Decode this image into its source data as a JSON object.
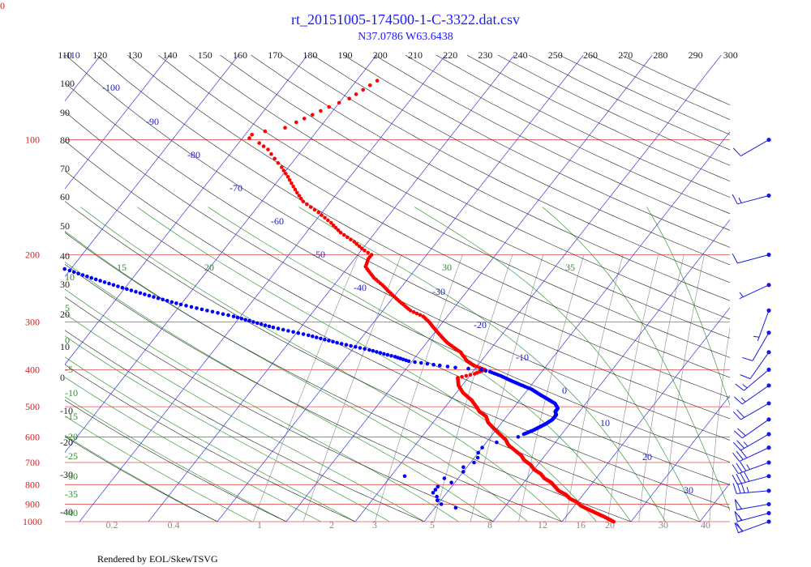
{
  "corner_label": "0",
  "footer": "Rendered by EOL/SkewTSVG",
  "chart_data": {
    "type": "scatter",
    "title": "rt_20151005-174500-1-C-3322.dat.csv",
    "subtitle": "N37.0786 W63.6438",
    "colors": {
      "isobar": "#e05050",
      "isotherm": "#3a3ad8",
      "dry_adiabat": "#222222",
      "moist_adiabat": "#3a9a3a",
      "mixing_ratio": "#9a9a9a",
      "temperature": "#ff0000",
      "dewpoint": "#0000ff",
      "wind": "#1a1ae0"
    },
    "temperature_axis": {
      "ticks": [
        110,
        120,
        130,
        140,
        150,
        160,
        170,
        180,
        190,
        200,
        210,
        220,
        230,
        240,
        250,
        260,
        270,
        280,
        290,
        300
      ]
    },
    "pressure_axis": {
      "ticks": [
        100,
        200,
        300,
        400,
        500,
        600,
        700,
        800,
        900,
        1000
      ],
      "range": [
        60,
        1000
      ]
    },
    "isotherm_labels": [
      -110,
      -100,
      -90,
      -80,
      -70,
      -60,
      -50,
      -40,
      -30,
      -20,
      -10,
      0,
      10,
      20,
      30
    ],
    "dry_adiabat_labels": [
      100,
      90,
      80,
      70,
      60,
      50,
      40,
      30,
      20,
      10,
      0,
      -10,
      -20,
      -30,
      -40
    ],
    "moist_adiabat_labels": [
      15,
      20,
      30,
      35,
      10,
      5,
      0,
      -5,
      -10,
      -15,
      -20,
      -25,
      -30,
      -35,
      -40
    ],
    "mixing_ratio_labels": [
      "0.2",
      "0.4",
      "1",
      "2",
      "3",
      "5",
      "8",
      "12",
      "16",
      "20",
      "30",
      "40"
    ],
    "series": [
      {
        "kind": "temperature",
        "points": [
          [
            1000,
            17.5
          ],
          [
            985,
            16.5
          ],
          [
            970,
            15.5
          ],
          [
            950,
            14
          ],
          [
            930,
            12.5
          ],
          [
            910,
            11
          ],
          [
            890,
            10
          ],
          [
            870,
            8.5
          ],
          [
            850,
            7.5
          ],
          [
            830,
            6
          ],
          [
            810,
            5
          ],
          [
            790,
            4
          ],
          [
            770,
            2.5
          ],
          [
            750,
            1.5
          ],
          [
            730,
            0
          ],
          [
            710,
            -1
          ],
          [
            690,
            -2.5
          ],
          [
            670,
            -3.5
          ],
          [
            650,
            -5
          ],
          [
            630,
            -6.5
          ],
          [
            610,
            -7.5
          ],
          [
            590,
            -9
          ],
          [
            570,
            -10.5
          ],
          [
            550,
            -12
          ],
          [
            530,
            -13
          ],
          [
            515,
            -14.5
          ],
          [
            500,
            -15.5
          ],
          [
            480,
            -17
          ],
          [
            460,
            -19
          ],
          [
            440,
            -20.5
          ],
          [
            430,
            -21
          ],
          [
            420,
            -21.5
          ],
          [
            410,
            -19.5
          ],
          [
            400,
            -18.5
          ],
          [
            390,
            -20.5
          ],
          [
            380,
            -22
          ],
          [
            360,
            -24
          ],
          [
            340,
            -27
          ],
          [
            320,
            -29.5
          ],
          [
            300,
            -32
          ],
          [
            290,
            -33.5
          ],
          [
            280,
            -36
          ],
          [
            260,
            -39.5
          ],
          [
            240,
            -43
          ],
          [
            230,
            -45
          ],
          [
            215,
            -47.5
          ],
          [
            205,
            -48
          ],
          [
            200,
            -48
          ],
          [
            195,
            -49.5
          ],
          [
            185,
            -52
          ],
          [
            175,
            -55
          ],
          [
            165,
            -57.5
          ],
          [
            155,
            -60.5
          ],
          [
            145,
            -64
          ],
          [
            135,
            -66.5
          ],
          [
            125,
            -69
          ],
          [
            118,
            -71
          ],
          [
            112,
            -73
          ],
          [
            106,
            -75
          ],
          [
            102,
            -77
          ],
          [
            99,
            -79
          ],
          [
            97,
            -79
          ],
          [
            95,
            -77.5
          ],
          [
            93,
            -75
          ],
          [
            90,
            -74
          ],
          [
            86,
            -72.5
          ],
          [
            82,
            -71
          ],
          [
            78,
            -69
          ],
          [
            74,
            -68
          ],
          [
            70,
            -67
          ]
        ]
      },
      {
        "kind": "dewpoint",
        "points": [
          [
            920,
            -7
          ],
          [
            900,
            -9.5
          ],
          [
            880,
            -10.5
          ],
          [
            860,
            -11
          ],
          [
            840,
            -12
          ],
          [
            825,
            -12
          ],
          [
            810,
            -12
          ],
          [
            790,
            -10.5
          ],
          [
            770,
            -12
          ],
          [
            760,
            -18
          ],
          [
            740,
            -10
          ],
          [
            720,
            -10.5
          ],
          [
            700,
            -9.5
          ],
          [
            680,
            -9.5
          ],
          [
            660,
            -10
          ],
          [
            640,
            -10
          ],
          [
            620,
            -8.5
          ],
          [
            600,
            -6
          ],
          [
            590,
            -5.5
          ],
          [
            575,
            -4.5
          ],
          [
            555,
            -3.5
          ],
          [
            540,
            -3
          ],
          [
            525,
            -3
          ],
          [
            515,
            -3.5
          ],
          [
            505,
            -3.5
          ],
          [
            490,
            -4.5
          ],
          [
            470,
            -7
          ],
          [
            450,
            -9.5
          ],
          [
            430,
            -13
          ],
          [
            415,
            -15.5
          ],
          [
            405,
            -17.5
          ],
          [
            400,
            -19
          ],
          [
            395,
            -23
          ],
          [
            390,
            -25.5
          ],
          [
            380,
            -30.5
          ],
          [
            370,
            -33
          ],
          [
            355,
            -37.5
          ],
          [
            340,
            -43
          ],
          [
            325,
            -48
          ],
          [
            310,
            -54
          ],
          [
            300,
            -57.5
          ],
          [
            290,
            -61
          ],
          [
            280,
            -65.5
          ],
          [
            270,
            -70
          ],
          [
            260,
            -74
          ],
          [
            250,
            -78
          ],
          [
            240,
            -82
          ],
          [
            230,
            -86
          ],
          [
            220,
            -90
          ],
          [
            210,
            -94.5
          ],
          [
            200,
            -99
          ],
          [
            190,
            -104
          ],
          [
            183,
            -108
          ]
        ]
      }
    ],
    "wind_barbs": [
      {
        "p": 1000,
        "speed_kt": 60,
        "dir": 250
      },
      {
        "p": 950,
        "speed_kt": 55,
        "dir": 255
      },
      {
        "p": 900,
        "speed_kt": 50,
        "dir": 260
      },
      {
        "p": 830,
        "speed_kt": 35,
        "dir": 265
      },
      {
        "p": 760,
        "speed_kt": 40,
        "dir": 255
      },
      {
        "p": 700,
        "speed_kt": 35,
        "dir": 250
      },
      {
        "p": 640,
        "speed_kt": 30,
        "dir": 245
      },
      {
        "p": 590,
        "speed_kt": 25,
        "dir": 240
      },
      {
        "p": 540,
        "speed_kt": 20,
        "dir": 235
      },
      {
        "p": 490,
        "speed_kt": 20,
        "dir": 240
      },
      {
        "p": 440,
        "speed_kt": 15,
        "dir": 235
      },
      {
        "p": 400,
        "speed_kt": 15,
        "dir": 230
      },
      {
        "p": 360,
        "speed_kt": 10,
        "dir": 215
      },
      {
        "p": 320,
        "speed_kt": 10,
        "dir": 210
      },
      {
        "p": 280,
        "speed_kt": 5,
        "dir": 200
      },
      {
        "p": 240,
        "speed_kt": 5,
        "dir": 245
      },
      {
        "p": 200,
        "speed_kt": 10,
        "dir": 255
      },
      {
        "p": 140,
        "speed_kt": 15,
        "dir": 255
      },
      {
        "p": 100,
        "speed_kt": 10,
        "dir": 240
      }
    ]
  }
}
